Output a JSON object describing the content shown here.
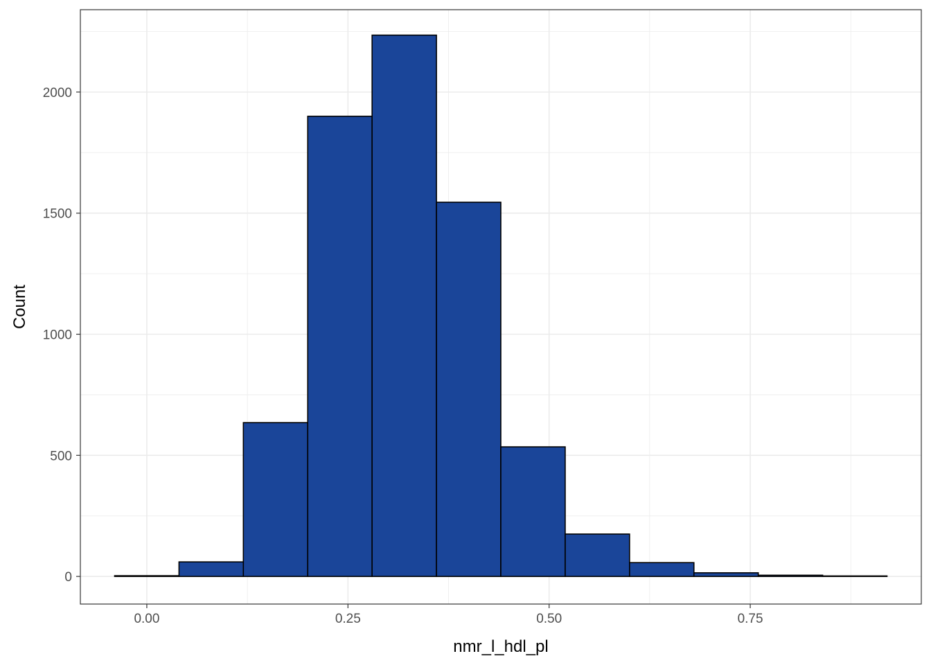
{
  "chart_data": {
    "type": "histogram",
    "xlabel": "nmr_l_hdl_pl",
    "ylabel": "Count",
    "xlim": [
      -0.0826,
      0.9626
    ],
    "ylim": [
      -114,
      2340
    ],
    "x_ticks": [
      0.0,
      0.25,
      0.5,
      0.75
    ],
    "x_tick_labels": [
      "0.00",
      "0.25",
      "0.50",
      "0.75"
    ],
    "y_ticks": [
      0,
      500,
      1000,
      1500,
      2000
    ],
    "y_tick_labels": [
      "0",
      "500",
      "1000",
      "1500",
      "2000"
    ],
    "bin_edges": [
      -0.04,
      0.04,
      0.12,
      0.2,
      0.28,
      0.36,
      0.44,
      0.52,
      0.6,
      0.68,
      0.76,
      0.84,
      0.92
    ],
    "counts": [
      3,
      60,
      635,
      1900,
      2235,
      1545,
      535,
      175,
      57,
      15,
      5,
      2
    ],
    "grid": true,
    "colors": {
      "fill": "#1a4599",
      "outline": "#000000",
      "grid": "#ebebeb",
      "panel_border": "#333333"
    }
  }
}
